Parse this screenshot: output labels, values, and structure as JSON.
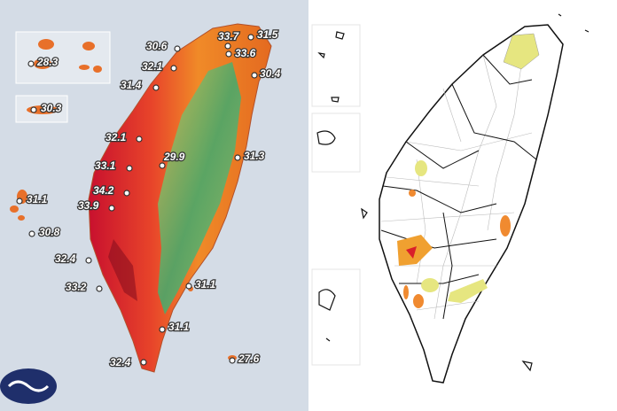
{
  "temperature_map": {
    "labels": [
      "30.6",
      "33.7",
      "31.5",
      "33.6",
      "32.1",
      "30.4",
      "31.4",
      "28.3",
      "30.3",
      "32.1",
      "29.9",
      "31.3",
      "33.1",
      "34.2",
      "33.9",
      "31.1",
      "30.8",
      "32.4",
      "33.2",
      "31.1",
      "31.1",
      "32.4",
      "27.6"
    ]
  }
}
